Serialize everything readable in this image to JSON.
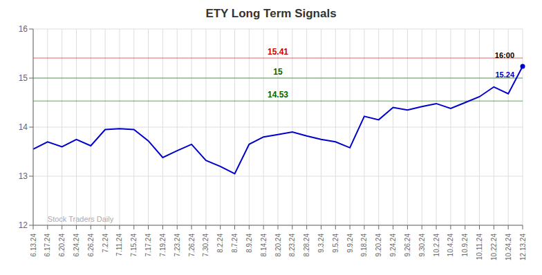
{
  "chart_data": {
    "type": "line",
    "title": "ETY Long Term Signals",
    "categories": [
      "6.13.24",
      "6.17.24",
      "6.20.24",
      "6.24.24",
      "6.26.24",
      "7.2.24",
      "7.11.24",
      "7.15.24",
      "7.17.24",
      "7.19.24",
      "7.23.24",
      "7.26.24",
      "7.30.24",
      "8.2.24",
      "8.7.24",
      "8.9.24",
      "8.14.24",
      "8.20.24",
      "8.23.24",
      "8.28.24",
      "9.3.24",
      "9.5.24",
      "9.9.24",
      "9.18.24",
      "9.20.24",
      "9.24.24",
      "9.26.24",
      "9.30.24",
      "10.2.24",
      "10.4.24",
      "10.9.24",
      "10.11.24",
      "10.22.24",
      "10.24.24",
      "12.13.24"
    ],
    "values": [
      13.55,
      13.7,
      13.6,
      13.75,
      13.62,
      13.95,
      13.97,
      13.95,
      13.72,
      13.38,
      13.52,
      13.65,
      13.32,
      13.2,
      13.05,
      13.65,
      13.8,
      13.85,
      13.9,
      13.82,
      13.75,
      13.7,
      13.58,
      14.22,
      14.15,
      14.4,
      14.35,
      14.42,
      14.48,
      14.38,
      14.5,
      14.62,
      14.82,
      14.68,
      15.24
    ],
    "color": "#0000cc",
    "ylim": [
      12,
      16
    ],
    "yticks": [
      12,
      13,
      14,
      15,
      16
    ],
    "grid": true,
    "hlines": [
      {
        "value": 15.41,
        "color": "#cc0000"
      },
      {
        "value": 15,
        "color": "#006600"
      },
      {
        "value": 14.53,
        "color": "#006600"
      }
    ],
    "annotations": [
      {
        "x": "12.13.24",
        "y": 15.24,
        "text": "16:00",
        "color": "#000000"
      },
      {
        "x": "12.13.24",
        "y": 15.24,
        "text": "15.24",
        "color": "#0000cc"
      }
    ],
    "watermark": "Stock Traders Daily"
  }
}
